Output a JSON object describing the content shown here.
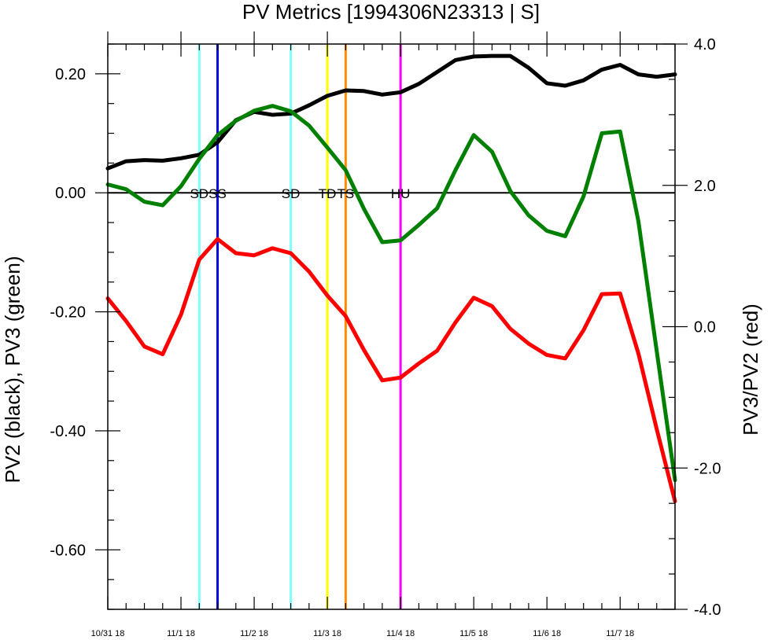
{
  "chart_data": {
    "type": "line",
    "title": "PV Metrics [1994306N23313 | S]",
    "ylabel_left": "PV2 (black), PV3 (green)",
    "ylabel_right": "PV3/PV2 (red)",
    "x_range": [
      0,
      7.75
    ],
    "ylim_left": [
      -0.7,
      0.25
    ],
    "ylim_right": [
      -4.0,
      4.0
    ],
    "x_ticks": [
      {
        "x": 0,
        "label": "10/31 18"
      },
      {
        "x": 1,
        "label": "11/1 18"
      },
      {
        "x": 2,
        "label": "11/2 18"
      },
      {
        "x": 3,
        "label": "11/3 18"
      },
      {
        "x": 4,
        "label": "11/4 18"
      },
      {
        "x": 5,
        "label": "11/5 18"
      },
      {
        "x": 6,
        "label": "11/6 18"
      },
      {
        "x": 7,
        "label": "11/7 18"
      }
    ],
    "x_minor_step": 0.25,
    "y_left_ticks": [
      {
        "v": 0.2,
        "label": "0.20"
      },
      {
        "v": 0.0,
        "label": "0.00"
      },
      {
        "v": -0.2,
        "label": "-0.20"
      },
      {
        "v": -0.4,
        "label": "-0.40"
      },
      {
        "v": -0.6,
        "label": "-0.60"
      }
    ],
    "y_left_minor_step": 0.05,
    "y_right_ticks": [
      {
        "v": 4.0,
        "label": "4.0"
      },
      {
        "v": 2.0,
        "label": "2.0"
      },
      {
        "v": 0.0,
        "label": "0.0"
      },
      {
        "v": -2.0,
        "label": "-2.0"
      },
      {
        "v": -4.0,
        "label": "-4.0"
      }
    ],
    "y_right_minor_step": 0.5,
    "zero_line": 0.0,
    "series": [
      {
        "axis": "left",
        "color": "#000000",
        "x": [
          0,
          0.25,
          0.5,
          0.75,
          1.0,
          1.25,
          1.5,
          1.75,
          2.0,
          2.25,
          2.5,
          2.75,
          3.0,
          3.25,
          3.5,
          3.75,
          4.0,
          4.25,
          4.5,
          4.75,
          5.0,
          5.25,
          5.5,
          5.75,
          6.0,
          6.25,
          6.5,
          6.75,
          7.0,
          7.25,
          7.5,
          7.75
        ],
        "values": [
          0.041,
          0.053,
          0.055,
          0.054,
          0.058,
          0.064,
          0.085,
          0.122,
          0.136,
          0.131,
          0.133,
          0.147,
          0.163,
          0.172,
          0.171,
          0.165,
          0.169,
          0.183,
          0.203,
          0.223,
          0.229,
          0.23,
          0.23,
          0.21,
          0.184,
          0.18,
          0.189,
          0.207,
          0.215,
          0.199,
          0.195,
          0.199
        ]
      },
      {
        "axis": "left",
        "color": "#008000",
        "x": [
          0,
          0.25,
          0.5,
          0.75,
          1.0,
          1.25,
          1.5,
          1.75,
          2.0,
          2.25,
          2.5,
          2.75,
          3.0,
          3.25,
          3.5,
          3.75,
          4.0,
          4.25,
          4.5,
          4.75,
          5.0,
          5.25,
          5.5,
          5.75,
          6.0,
          6.25,
          6.5,
          6.75,
          7.0,
          7.25,
          7.5,
          7.75
        ],
        "values": [
          0.014,
          0.006,
          -0.015,
          -0.021,
          0.011,
          0.057,
          0.097,
          0.121,
          0.138,
          0.146,
          0.137,
          0.113,
          0.076,
          0.038,
          -0.027,
          -0.083,
          -0.08,
          -0.054,
          -0.026,
          0.038,
          0.097,
          0.069,
          0.003,
          -0.038,
          -0.064,
          -0.073,
          -0.006,
          0.1,
          0.103,
          -0.048,
          -0.266,
          -0.483
        ]
      },
      {
        "axis": "right",
        "color": "#ff0000",
        "x": [
          0,
          0.25,
          0.5,
          0.75,
          1.0,
          1.25,
          1.5,
          1.75,
          2.0,
          2.25,
          2.5,
          2.75,
          3.0,
          3.25,
          3.5,
          3.75,
          4.0,
          4.25,
          4.5,
          4.75,
          5.0,
          5.25,
          5.5,
          5.75,
          6.0,
          6.25,
          6.5,
          6.75,
          7.0,
          7.25,
          7.5,
          7.75
        ],
        "values": [
          0.4,
          0.08,
          -0.28,
          -0.39,
          0.17,
          0.95,
          1.24,
          1.04,
          1.01,
          1.11,
          1.04,
          0.78,
          0.44,
          0.15,
          -0.33,
          -0.76,
          -0.72,
          -0.52,
          -0.34,
          0.06,
          0.41,
          0.29,
          -0.03,
          -0.24,
          -0.4,
          -0.45,
          -0.05,
          0.46,
          0.47,
          -0.38,
          -1.45,
          -2.47
        ]
      }
    ],
    "events": [
      {
        "x": 1.25,
        "label": "SD",
        "color": "#80ffff"
      },
      {
        "x": 1.5,
        "label": "SS",
        "color": "#0000dd"
      },
      {
        "x": 2.5,
        "label": "SD",
        "color": "#80ffff"
      },
      {
        "x": 3.0,
        "label": "TD",
        "color": "#ffff00"
      },
      {
        "x": 3.25,
        "label": "TS",
        "color": "#ff8c00"
      },
      {
        "x": 4.0,
        "label": "HU",
        "color": "#ff00ff"
      }
    ]
  }
}
